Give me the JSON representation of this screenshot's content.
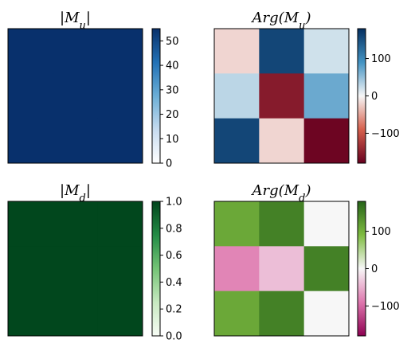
{
  "chart_data": [
    {
      "type": "heatmap",
      "title": "|M_u|",
      "title_parts": {
        "left": "|M",
        "sub": "u",
        "right": "|"
      },
      "colormap": "Blues",
      "cells": [
        [
          54.9,
          54.9,
          54.9
        ],
        [
          54.9,
          54.9,
          54.9
        ],
        [
          54.9,
          54.9,
          54.9
        ]
      ],
      "clim": [
        0,
        55
      ],
      "colorbar_ticks": [
        0,
        10,
        20,
        30,
        40,
        50
      ],
      "colorbar_tick_labels": [
        "0",
        "10",
        "20",
        "30",
        "40",
        "50"
      ],
      "colors": [
        "#ffffff",
        "#c6dbef",
        "#6baed6",
        "#2171b5",
        "#08306b"
      ]
    },
    {
      "type": "heatmap",
      "title": "Arg(M_u)",
      "title_parts": {
        "left": "Arg(M",
        "sub": "u",
        "right": ")"
      },
      "colormap": "RdBu",
      "cells": [
        [
          -20,
          160,
          20
        ],
        [
          30,
          -155,
          70
        ],
        [
          160,
          -20,
          -175
        ]
      ],
      "clim": [
        -180,
        180
      ],
      "colorbar_ticks": [
        100,
        0,
        -100
      ],
      "colorbar_tick_labels": [
        "100",
        "0",
        "−100"
      ],
      "colors": [
        "#67001f",
        "#d6604d",
        "#f7f7f7",
        "#4393c3",
        "#053061"
      ]
    },
    {
      "type": "heatmap",
      "title": "|M_d|",
      "title_parts": {
        "left": "|M",
        "sub": "d",
        "right": "|"
      },
      "colormap": "Greens",
      "cells": [
        [
          0.99,
          0.99,
          0.99
        ],
        [
          0.99,
          0.99,
          0.99
        ],
        [
          0.99,
          0.99,
          0.99
        ]
      ],
      "clim": [
        0,
        1
      ],
      "colorbar_ticks": [
        0.0,
        0.2,
        0.4,
        0.6,
        0.8,
        1.0
      ],
      "colorbar_tick_labels": [
        "0.0",
        "0.2",
        "0.4",
        "0.6",
        "0.8",
        "1.0"
      ],
      "colors": [
        "#f7fcf5",
        "#c7e9c0",
        "#74c476",
        "#238b45",
        "#00441b"
      ]
    },
    {
      "type": "heatmap",
      "title": "Arg(M_d)",
      "title_parts": {
        "left": "Arg(M",
        "sub": "d",
        "right": ")"
      },
      "colormap": "PiYG",
      "cells": [
        [
          110,
          150,
          0
        ],
        [
          -80,
          -40,
          150
        ],
        [
          110,
          150,
          0
        ]
      ],
      "clim": [
        -180,
        180
      ],
      "colorbar_ticks": [
        100,
        0,
        -100
      ],
      "colorbar_tick_labels": [
        "100",
        "0",
        "−100"
      ],
      "colors": [
        "#8e0152",
        "#de77ae",
        "#f7f7f7",
        "#7fbc41",
        "#276419"
      ]
    }
  ]
}
